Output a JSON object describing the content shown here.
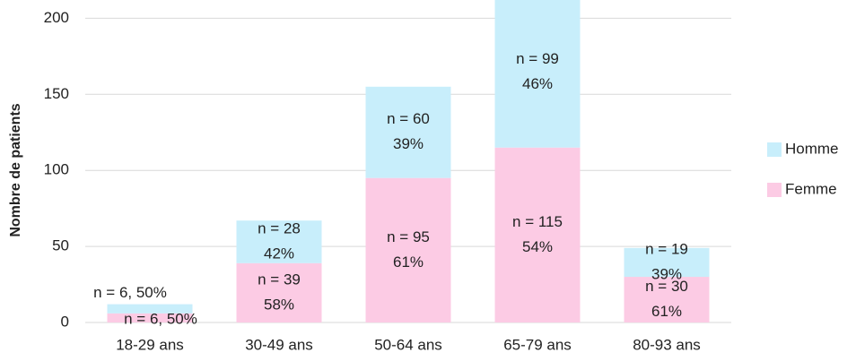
{
  "chart_data": {
    "type": "stacked_bar",
    "y_label": "Nombre de patients",
    "categories": [
      "18-29 ans",
      "30-49 ans",
      "50-64 ans",
      "65-79 ans",
      "80-93 ans"
    ],
    "series": [
      {
        "name": "Femme",
        "color": "#fccbe4",
        "values": [
          6,
          39,
          95,
          115,
          30
        ],
        "value_labels": [
          [
            "n = 6, 50%"
          ],
          [
            "n = 39",
            "58%"
          ],
          [
            "n = 95",
            "61%"
          ],
          [
            "n = 115",
            "54%"
          ],
          [
            "n = 30",
            "61%"
          ]
        ]
      },
      {
        "name": "Homme",
        "color": "#c8eefb",
        "values": [
          6,
          28,
          60,
          99,
          19
        ],
        "value_labels": [
          [
            "n = 6, 50%"
          ],
          [
            "n = 28",
            "42%"
          ],
          [
            "n = 60",
            "39%"
          ],
          [
            "n = 99",
            "46%"
          ],
          [
            "n = 19",
            "39%"
          ]
        ]
      }
    ],
    "ylim": [
      0,
      212
    ],
    "yticks": [
      0,
      50,
      100,
      150,
      200
    ],
    "grid": true,
    "legend": "right"
  }
}
